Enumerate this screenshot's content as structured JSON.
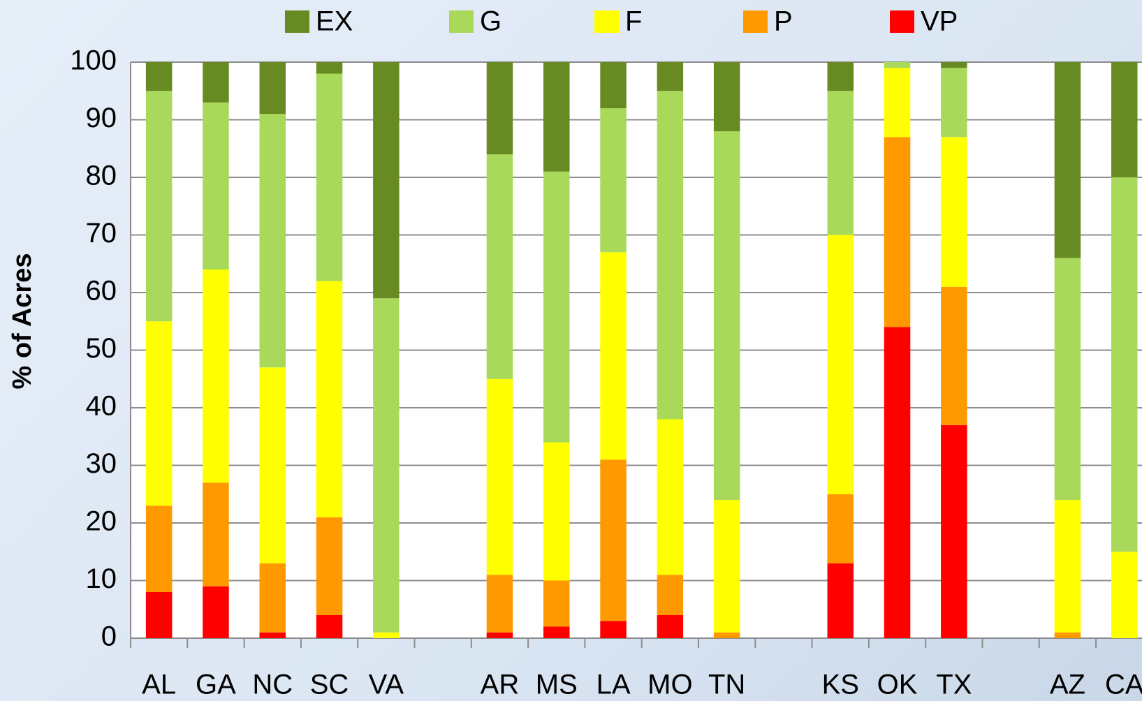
{
  "chart_data": {
    "type": "stacked_bar",
    "y_label": "% of Acres",
    "categories": [
      "AL",
      "GA",
      "NC",
      "SC",
      "VA",
      null,
      "AR",
      "MS",
      "LA",
      "MO",
      "TN",
      null,
      "KS",
      "OK",
      "TX",
      null,
      "AZ",
      "CA"
    ],
    "series": [
      {
        "name": "EX",
        "color": "#688a22",
        "values": [
          5,
          7,
          9,
          2,
          41,
          null,
          16,
          19,
          8,
          5,
          12,
          null,
          5,
          0,
          1,
          null,
          34,
          20
        ]
      },
      {
        "name": "G",
        "color": "#a9d95a",
        "values": [
          40,
          29,
          44,
          36,
          58,
          null,
          39,
          47,
          25,
          57,
          64,
          null,
          25,
          1,
          12,
          null,
          42,
          65
        ]
      },
      {
        "name": "F",
        "color": "#ffff00",
        "values": [
          32,
          37,
          34,
          41,
          1,
          null,
          34,
          24,
          36,
          27,
          23,
          null,
          45,
          12,
          26,
          null,
          23,
          15
        ]
      },
      {
        "name": "P",
        "color": "#ff9900",
        "values": [
          15,
          18,
          12,
          17,
          0,
          null,
          10,
          8,
          28,
          7,
          1,
          null,
          12,
          33,
          24,
          null,
          1,
          0
        ]
      },
      {
        "name": "VP",
        "color": "#ff0000",
        "values": [
          8,
          9,
          1,
          4,
          0,
          null,
          1,
          2,
          3,
          4,
          0,
          null,
          13,
          54,
          37,
          null,
          0,
          0
        ]
      }
    ],
    "ylim": [
      0,
      100
    ],
    "yticks": [
      0,
      10,
      20,
      30,
      40,
      50,
      60,
      70,
      80,
      90,
      100
    ],
    "grid": true
  }
}
